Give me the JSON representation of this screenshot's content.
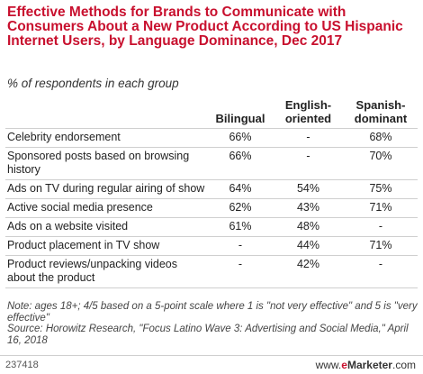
{
  "chart_data": {
    "type": "table",
    "title": "Effective Methods for Brands to Communicate with Consumers About a New Product According to US Hispanic Internet Users, by Language Dominance, Dec 2017",
    "subtitle": "% of respondents in each group",
    "columns": [
      "",
      "Bilingual",
      "English-oriented",
      "Spanish-dominant"
    ],
    "rows": [
      {
        "label": "Celebrity endorsement",
        "values": [
          "66%",
          "-",
          "68%"
        ]
      },
      {
        "label": "Sponsored posts based on browsing history",
        "values": [
          "66%",
          "-",
          "70%"
        ]
      },
      {
        "label": "Ads on TV during regular airing of show",
        "values": [
          "64%",
          "54%",
          "75%"
        ]
      },
      {
        "label": "Active social media presence",
        "values": [
          "62%",
          "43%",
          "71%"
        ]
      },
      {
        "label": "Ads on a website visited",
        "values": [
          "61%",
          "48%",
          "-"
        ]
      },
      {
        "label": "Product placement in TV show",
        "values": [
          "-",
          "44%",
          "71%"
        ]
      },
      {
        "label": "Product reviews/unpacking videos about the product",
        "values": [
          "-",
          "42%",
          "-"
        ]
      }
    ],
    "note": "Note: ages 18+; 4/5 based on a 5-point scale where 1 is \"not very effective\" and 5 is \"very effective\"",
    "source": "Source: Horowitz Research, \"Focus Latino Wave 3: Advertising and Social Media,\" April 16, 2018"
  },
  "footer": {
    "id": "237418",
    "brand_prefix": "www.",
    "brand_e": "e",
    "brand_name": "Marketer",
    "brand_suffix": ".com"
  },
  "colors": {
    "title": "#c8102e",
    "brand": "#c8102e"
  }
}
